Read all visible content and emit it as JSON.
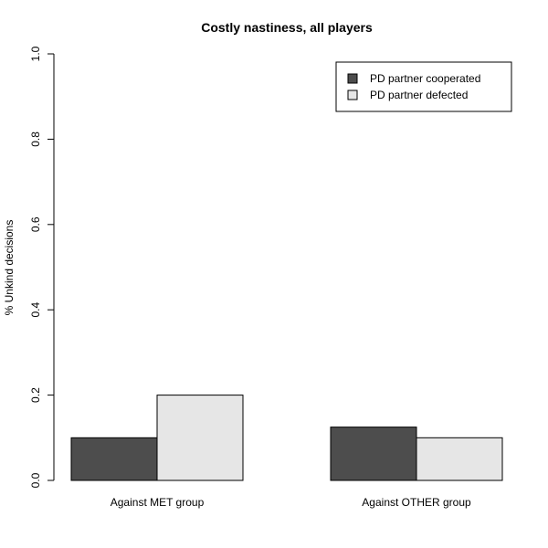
{
  "chart_data": {
    "type": "bar",
    "title": "Costly nastiness, all players",
    "ylabel": "% Unkind decisions",
    "xlabel": "",
    "ylim": [
      0,
      1
    ],
    "yticks": [
      "0.0",
      "0.2",
      "0.4",
      "0.6",
      "0.8",
      "1.0"
    ],
    "yticks_values": [
      0,
      0.2,
      0.4,
      0.6,
      0.8,
      1.0
    ],
    "categories": [
      "Against MET group",
      "Against OTHER group"
    ],
    "series": [
      {
        "name": "PD partner cooperated",
        "color": "#4d4d4d",
        "values": [
          0.1,
          0.125
        ]
      },
      {
        "name": "PD partner defected",
        "color": "#e6e6e6",
        "values": [
          0.2,
          0.1
        ]
      }
    ],
    "legend_position": "top-right",
    "grid": false
  }
}
